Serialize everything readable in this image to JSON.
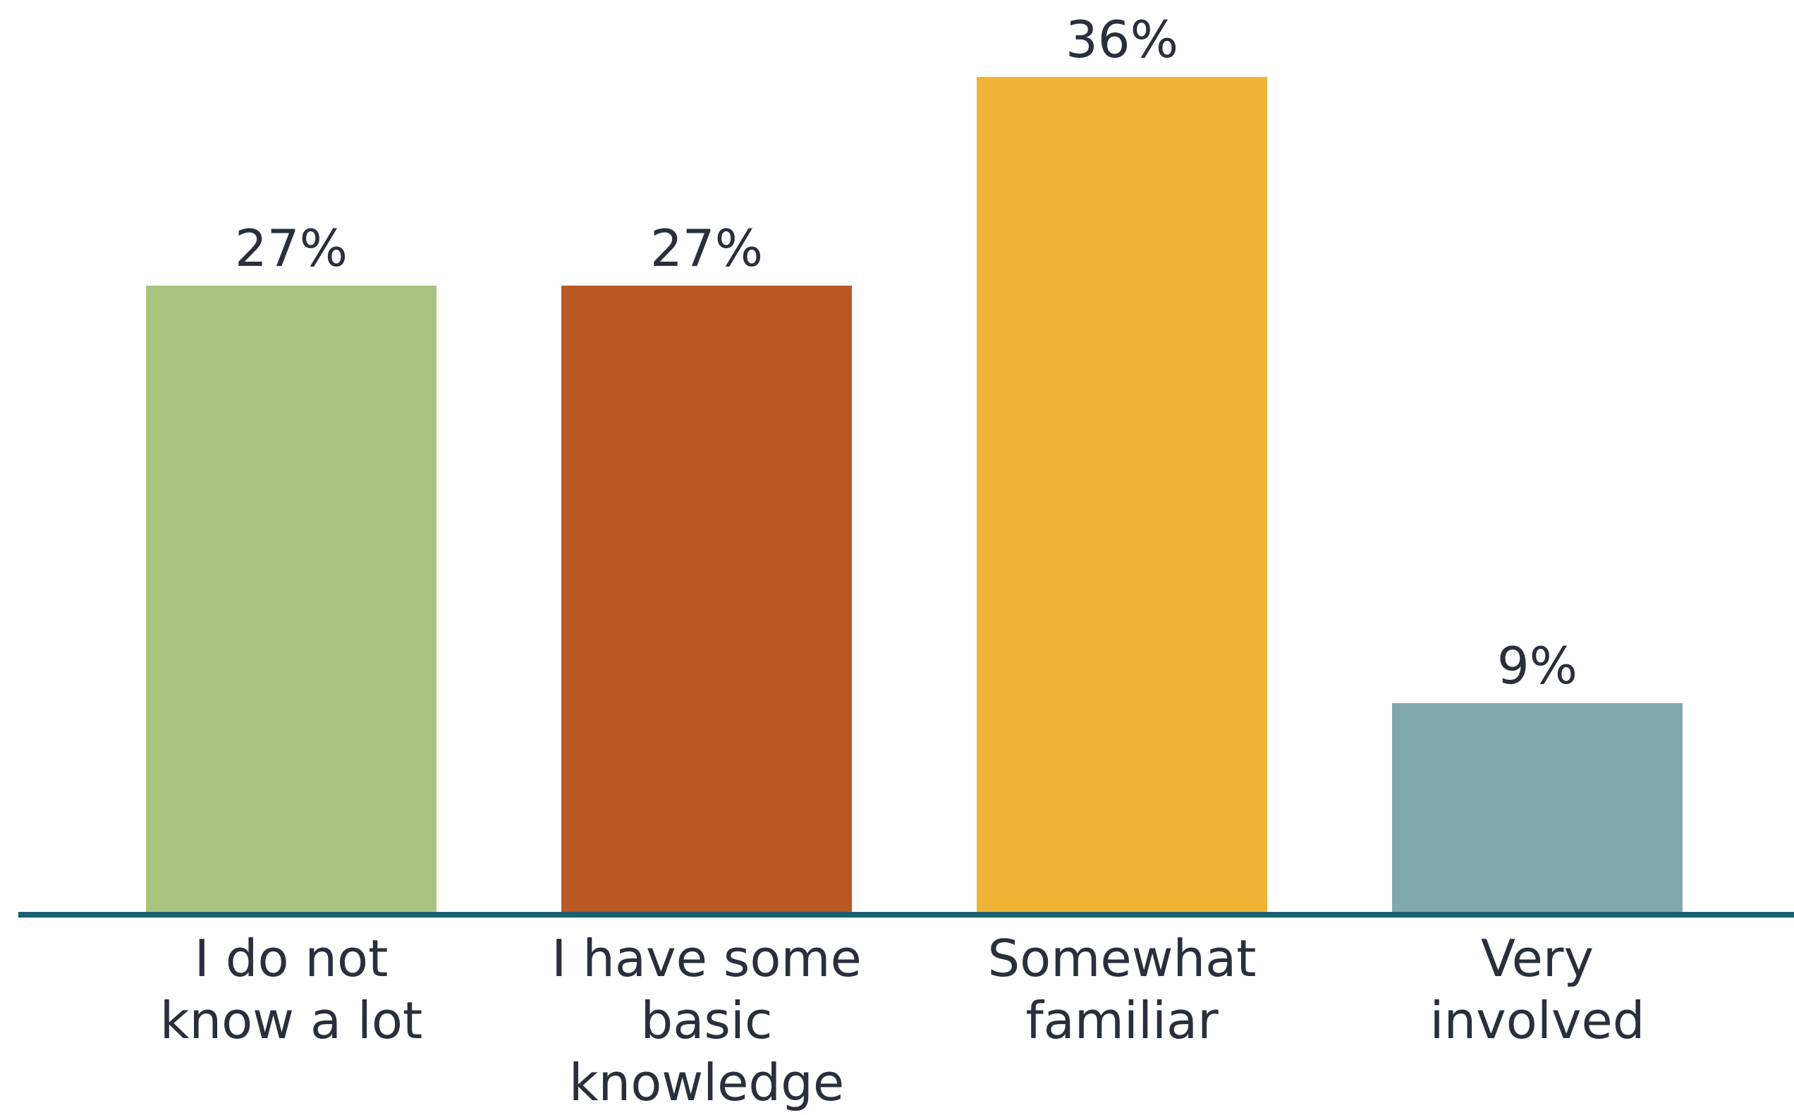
{
  "chart_data": {
    "type": "bar",
    "title": "",
    "xlabel": "",
    "ylabel": "",
    "categories": [
      [
        "I do not",
        "know a lot"
      ],
      [
        "I have some",
        "basic",
        "knowledge"
      ],
      [
        "Somewhat",
        "familiar"
      ],
      [
        "Very",
        "involved"
      ]
    ],
    "values": [
      27,
      27,
      36,
      9
    ],
    "value_labels": [
      "27%",
      "27%",
      "36%",
      "9%"
    ],
    "colors": [
      "#a9c47f",
      "#b85825",
      "#f0b436",
      "#80a9af"
    ],
    "axis_color": "#1a5f70",
    "ylim": [
      0,
      36
    ],
    "grid": false,
    "legend": "none"
  }
}
